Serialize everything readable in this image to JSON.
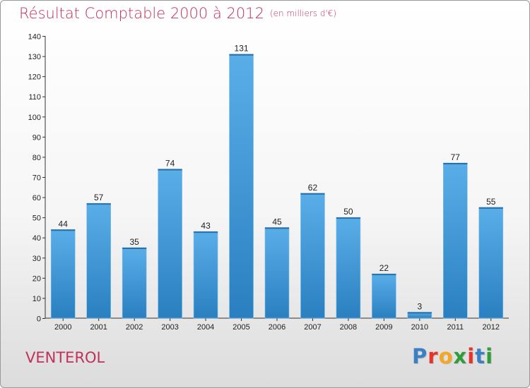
{
  "header": {
    "title": "Résultat Comptable 2000 à 2012",
    "subtitle": "(en milliers d'€)"
  },
  "commune": "VENTEROL",
  "logo": {
    "letters": [
      {
        "ch": "P",
        "color": "#3b7fc4"
      },
      {
        "ch": "r",
        "color": "#e8322a"
      },
      {
        "ch": "o",
        "color": "#f5a623"
      },
      {
        "ch": "x",
        "color": "#2e9e3a"
      },
      {
        "ch": "i",
        "color": "#e8322a"
      },
      {
        "ch": "t",
        "color": "#3b7fc4"
      },
      {
        "ch": "i",
        "color": "#2e9e3a"
      }
    ]
  },
  "chart_data": {
    "type": "bar",
    "title": "Résultat Comptable 2000 à 2012",
    "subtitle": "(en milliers d'€)",
    "categories": [
      "2000",
      "2001",
      "2002",
      "2003",
      "2004",
      "2005",
      "2006",
      "2007",
      "2008",
      "2009",
      "2010",
      "2011",
      "2012"
    ],
    "values": [
      44,
      57,
      35,
      74,
      43,
      131,
      45,
      62,
      50,
      22,
      3,
      77,
      55
    ],
    "ylim": [
      0,
      140
    ],
    "yticks": [
      0,
      10,
      20,
      30,
      40,
      50,
      60,
      70,
      80,
      90,
      100,
      110,
      120,
      130,
      140
    ],
    "xlabel": "",
    "ylabel": "",
    "grid": false,
    "bar_color_top": "#5aaee8",
    "bar_color_bottom": "#2a7fc0"
  }
}
